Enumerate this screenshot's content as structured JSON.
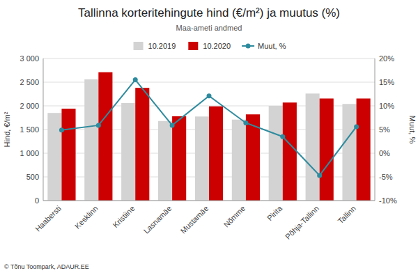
{
  "chart_data": {
    "type": "bar",
    "title": "Tallinna korteritehingute hind (€/m²) ja muutus (%)",
    "subtitle": "Maa-ameti andmed",
    "ylabel": "Hind, €/m²",
    "y2label": "Muut, %",
    "categories": [
      "Haabersti",
      "Kesklinn",
      "Kristiine",
      "Lasnamäe",
      "Mustamäe",
      "Nõmme",
      "Pirita",
      "Põhja-Tallinn",
      "Tallinn"
    ],
    "series": [
      {
        "name": "10.2019",
        "color": "#d3d3d3",
        "values": [
          1850,
          2560,
          2060,
          1680,
          1775,
          1710,
          2000,
          2260,
          2040
        ]
      },
      {
        "name": "10.2020",
        "color": "#cc0000",
        "values": [
          1940,
          2710,
          2380,
          1780,
          1990,
          1820,
          2070,
          2155,
          2155
        ]
      },
      {
        "name": "Muut, %",
        "type": "line",
        "axis": "y2",
        "marker": "circle",
        "color": "#2e8b9e",
        "values": [
          4.9,
          5.9,
          15.5,
          5.9,
          12.1,
          6.4,
          3.5,
          -4.7,
          5.6
        ]
      }
    ],
    "ylim": [
      0,
      3000
    ],
    "yticks": [
      0,
      500,
      {
        "value": 1000,
        "label": "1 000"
      },
      {
        "value": 1500,
        "label": "1 500"
      },
      {
        "value": 2000,
        "label": "2 000"
      },
      {
        "value": 2500,
        "label": "2 500"
      },
      {
        "value": 3000,
        "label": "3 000"
      }
    ],
    "y2lim": [
      -10,
      20
    ],
    "y2ticks": [
      {
        "value": -10,
        "label": "-10%"
      },
      {
        "value": -5,
        "label": "-5%"
      },
      {
        "value": 0,
        "label": "0%"
      },
      {
        "value": 5,
        "label": "5%"
      },
      {
        "value": 10,
        "label": "10%"
      },
      {
        "value": 15,
        "label": "15%"
      },
      {
        "value": 20,
        "label": "20%"
      }
    ],
    "grid": true,
    "legend": "top",
    "annotations": [
      "© Tõnu Toompark, ADAUR.EE"
    ]
  }
}
